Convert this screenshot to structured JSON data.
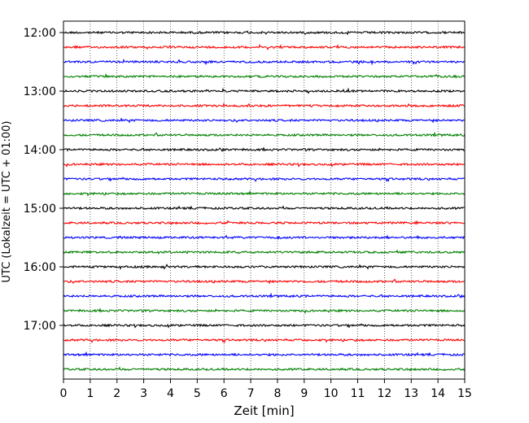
{
  "chart_data": {
    "type": "line",
    "title": "",
    "xlabel": "Zeit  [min]",
    "ylabel": "UTC (Lokalzeit = UTC + 01:00)",
    "xlim": [
      0,
      15
    ],
    "x_ticks": [
      0,
      1,
      2,
      3,
      4,
      5,
      6,
      7,
      8,
      9,
      10,
      11,
      12,
      13,
      14,
      15
    ],
    "x_tick_labels": [
      "0",
      "1",
      "2",
      "3",
      "4",
      "5",
      "6",
      "7",
      "8",
      "9",
      "10",
      "11",
      "12",
      "13",
      "14",
      "15"
    ],
    "y_tick_labels": [
      "12:00",
      "13:00",
      "14:00",
      "15:00",
      "16:00",
      "17:00"
    ],
    "vertical_grid": true,
    "trace_minutes": 15,
    "start_time": "12:00",
    "end_time": "17:45",
    "colors_cycle": [
      "#000000",
      "#ff0000",
      "#0000ff",
      "#008000"
    ],
    "series": [
      {
        "start": "12:00",
        "color": "#000000"
      },
      {
        "start": "12:15",
        "color": "#ff0000"
      },
      {
        "start": "12:30",
        "color": "#0000ff"
      },
      {
        "start": "12:45",
        "color": "#008000"
      },
      {
        "start": "13:00",
        "color": "#000000"
      },
      {
        "start": "13:15",
        "color": "#ff0000"
      },
      {
        "start": "13:30",
        "color": "#0000ff"
      },
      {
        "start": "13:45",
        "color": "#008000"
      },
      {
        "start": "14:00",
        "color": "#000000"
      },
      {
        "start": "14:15",
        "color": "#ff0000"
      },
      {
        "start": "14:30",
        "color": "#0000ff"
      },
      {
        "start": "14:45",
        "color": "#008000"
      },
      {
        "start": "15:00",
        "color": "#000000"
      },
      {
        "start": "15:15",
        "color": "#ff0000"
      },
      {
        "start": "15:30",
        "color": "#0000ff"
      },
      {
        "start": "15:45",
        "color": "#008000"
      },
      {
        "start": "16:00",
        "color": "#000000"
      },
      {
        "start": "16:15",
        "color": "#ff0000"
      },
      {
        "start": "16:30",
        "color": "#0000ff"
      },
      {
        "start": "16:45",
        "color": "#008000"
      },
      {
        "start": "17:00",
        "color": "#000000"
      },
      {
        "start": "17:15",
        "color": "#ff0000"
      },
      {
        "start": "17:30",
        "color": "#0000ff"
      },
      {
        "start": "17:45",
        "color": "#008000"
      }
    ]
  }
}
